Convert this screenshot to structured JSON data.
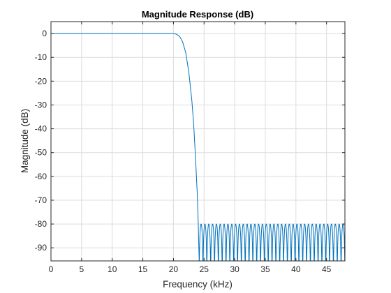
{
  "chart_data": {
    "type": "line",
    "title": "Magnitude Response (dB)",
    "xlabel": "Frequency (kHz)",
    "ylabel": "Magnitude (dB)",
    "xlim": [
      0,
      48
    ],
    "ylim": [
      -95.5,
      5
    ],
    "xticks": [
      0,
      5,
      10,
      15,
      20,
      25,
      30,
      35,
      40,
      45
    ],
    "yticks": [
      0,
      -10,
      -20,
      -30,
      -40,
      -50,
      -60,
      -70,
      -80,
      -90
    ],
    "grid": true,
    "series": [
      {
        "color": "#0072bd",
        "passband": {
          "x": [
            0,
            20
          ],
          "y": 0
        },
        "transition": {
          "x": [
            20.0,
            20.5,
            21.0,
            21.5,
            22.0,
            22.5,
            23.0,
            23.3,
            23.6,
            23.9,
            24.0,
            24.2
          ],
          "y": [
            0,
            -0.3,
            -1.2,
            -3.5,
            -8,
            -16,
            -28,
            -38,
            -52,
            -68,
            -75,
            -95.5
          ]
        },
        "stopband": {
          "x_start": 24.2,
          "x_end": 48,
          "lobes": 38,
          "peak_db": -80,
          "floor_db": -95.5
        }
      }
    ]
  }
}
